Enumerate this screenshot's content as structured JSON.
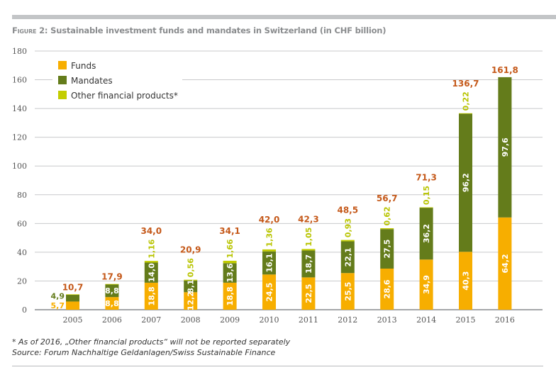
{
  "title_prefix": "Figure 2:",
  "title_text": " Sustainable investment funds and mandates in Switzerland (in CHF billion)",
  "chart_data": {
    "type": "bar",
    "stacked": true,
    "title": "Figure 2: Sustainable investment funds and mandates in Switzerland (in CHF billion)",
    "xlabel": "",
    "ylabel": "",
    "ylim": [
      0,
      180
    ],
    "yticks": [
      0,
      20,
      40,
      60,
      80,
      100,
      120,
      140,
      160,
      180
    ],
    "grid": true,
    "legend_position": "top-left",
    "categories": [
      "2005",
      "2006",
      "2007",
      "2008",
      "2009",
      "2010",
      "2011",
      "2012",
      "2013",
      "2014",
      "2015",
      "2016"
    ],
    "series": [
      {
        "name": "Funds",
        "color": "#f7ae00",
        "values": [
          5.7,
          8.8,
          18.8,
          12.2,
          18.8,
          24.5,
          22.5,
          25.5,
          28.6,
          34.9,
          40.3,
          64.2
        ],
        "labels": [
          "5,7",
          "8,8",
          "18,8",
          "12,2",
          "18,8",
          "24,5",
          "22,5",
          "25,5",
          "28,6",
          "34,9",
          "40,3",
          "64,2"
        ]
      },
      {
        "name": "Mandates",
        "color": "#647c1b",
        "values": [
          4.9,
          8.8,
          14.0,
          8.1,
          13.6,
          16.1,
          18.7,
          22.1,
          27.5,
          36.2,
          96.2,
          97.6
        ],
        "labels": [
          "4,9",
          "8,8",
          "14,0",
          "8,1",
          "13,6",
          "16,1",
          "18,7",
          "22,1",
          "27,5",
          "36,2",
          "96,2",
          "97,6"
        ]
      },
      {
        "name": "Other financial products*",
        "color": "#c3cd00",
        "values": [
          0.1,
          0.3,
          1.16,
          0.56,
          1.66,
          1.36,
          1.05,
          0.93,
          0.62,
          0.15,
          0.22,
          0
        ],
        "labels": [
          "",
          "",
          "1,16",
          "0,56",
          "1,66",
          "1,36",
          "1,05",
          "0,93",
          "0,62",
          "0,15",
          "0,22",
          ""
        ]
      }
    ],
    "totals": [
      10.7,
      17.9,
      34.0,
      20.9,
      34.1,
      42.0,
      42.3,
      48.5,
      56.7,
      71.3,
      136.7,
      161.8
    ],
    "total_labels": [
      "10,7",
      "17,9",
      "34,0",
      "20,9",
      "34,1",
      "42,0",
      "42,3",
      "48,5",
      "56,7",
      "71,3",
      "136,7",
      "161,8"
    ],
    "total_color": "#c5591a"
  },
  "footnote": "* As of 2016, „Other financial products“ will not be reported separately",
  "source": "Source: Forum Nachhaltige Geldanlagen/Swiss Sustainable Finance"
}
